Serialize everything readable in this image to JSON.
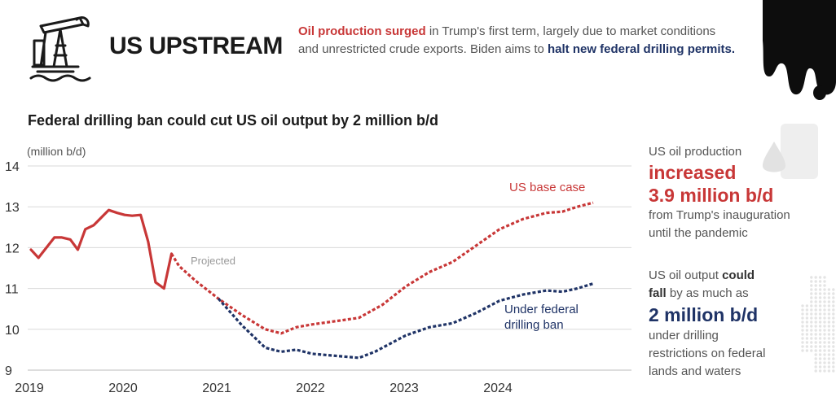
{
  "header": {
    "title": "US UPSTREAM",
    "intro_red": "Oil production surged",
    "intro_mid": " in Trump's first term, largely due to market conditions and unrestricted crude exports. Biden aims to ",
    "intro_navy": "halt new federal drilling permits.",
    "icon": "oil-pump-jack-icon"
  },
  "side": {
    "fact1_pre": "US oil production",
    "fact1_big1": "increased",
    "fact1_big2": "3.9 million b/d",
    "fact1_post1": "from Trump's inauguration",
    "fact1_post2": "until the pandemic",
    "fact2_pre1a": "US oil output ",
    "fact2_pre1b": "could",
    "fact2_pre2a": "fall",
    "fact2_pre2b": " by as much as",
    "fact2_big": "2 million b/d",
    "fact2_post1": "under drilling",
    "fact2_post2": "restrictions on federal",
    "fact2_post3": "lands and waters"
  },
  "colors": {
    "red": "#c83737",
    "navy": "#1f3366",
    "grid": "#d9d9d9",
    "projected_label": "#999999"
  },
  "chart_data": {
    "type": "line",
    "title": "Federal drilling ban could cut US oil output by 2 million b/d",
    "ylabel": "(million b/d)",
    "ylim": [
      9,
      14
    ],
    "yticks": [
      9,
      10,
      11,
      12,
      13,
      14
    ],
    "xlim": [
      2019.0,
      2025.0
    ],
    "xticks": [
      2019,
      2020,
      2021,
      2022,
      2023,
      2024
    ],
    "grid": true,
    "annotations": {
      "projected": "Projected",
      "base_case": "US base case",
      "ban_line1": "Under federal",
      "ban_line2": "drilling ban"
    },
    "series": [
      {
        "name": "Historical",
        "style": "solid",
        "color": "#c83737",
        "points": [
          [
            2019.0,
            11.95
          ],
          [
            2019.08,
            11.75
          ],
          [
            2019.25,
            12.25
          ],
          [
            2019.33,
            12.25
          ],
          [
            2019.42,
            12.2
          ],
          [
            2019.5,
            11.95
          ],
          [
            2019.58,
            12.45
          ],
          [
            2019.67,
            12.55
          ],
          [
            2019.83,
            12.92
          ],
          [
            2019.92,
            12.85
          ],
          [
            2020.0,
            12.8
          ],
          [
            2020.08,
            12.78
          ],
          [
            2020.17,
            12.8
          ],
          [
            2020.25,
            12.15
          ],
          [
            2020.33,
            11.15
          ],
          [
            2020.42,
            11.0
          ],
          [
            2020.5,
            11.85
          ]
        ]
      },
      {
        "name": "US base case",
        "style": "dashed",
        "color": "#c83737",
        "points": [
          [
            2020.5,
            11.85
          ],
          [
            2020.58,
            11.55
          ],
          [
            2020.75,
            11.2
          ],
          [
            2021.0,
            10.75
          ],
          [
            2021.25,
            10.35
          ],
          [
            2021.5,
            10.0
          ],
          [
            2021.67,
            9.9
          ],
          [
            2021.83,
            10.05
          ],
          [
            2022.0,
            10.12
          ],
          [
            2022.25,
            10.2
          ],
          [
            2022.5,
            10.28
          ],
          [
            2022.75,
            10.6
          ],
          [
            2023.0,
            11.05
          ],
          [
            2023.25,
            11.4
          ],
          [
            2023.5,
            11.65
          ],
          [
            2023.75,
            12.05
          ],
          [
            2024.0,
            12.45
          ],
          [
            2024.25,
            12.7
          ],
          [
            2024.5,
            12.85
          ],
          [
            2024.67,
            12.88
          ],
          [
            2024.83,
            13.0
          ],
          [
            2025.0,
            13.1
          ]
        ]
      },
      {
        "name": "Under federal drilling ban",
        "style": "dashed",
        "color": "#1f3366",
        "points": [
          [
            2021.0,
            10.75
          ],
          [
            2021.25,
            10.1
          ],
          [
            2021.5,
            9.55
          ],
          [
            2021.67,
            9.45
          ],
          [
            2021.83,
            9.5
          ],
          [
            2022.0,
            9.4
          ],
          [
            2022.25,
            9.35
          ],
          [
            2022.5,
            9.3
          ],
          [
            2022.67,
            9.45
          ],
          [
            2023.0,
            9.85
          ],
          [
            2023.25,
            10.05
          ],
          [
            2023.5,
            10.15
          ],
          [
            2023.75,
            10.4
          ],
          [
            2024.0,
            10.7
          ],
          [
            2024.25,
            10.85
          ],
          [
            2024.5,
            10.95
          ],
          [
            2024.67,
            10.92
          ],
          [
            2024.83,
            11.0
          ],
          [
            2025.0,
            11.12
          ]
        ]
      }
    ]
  }
}
